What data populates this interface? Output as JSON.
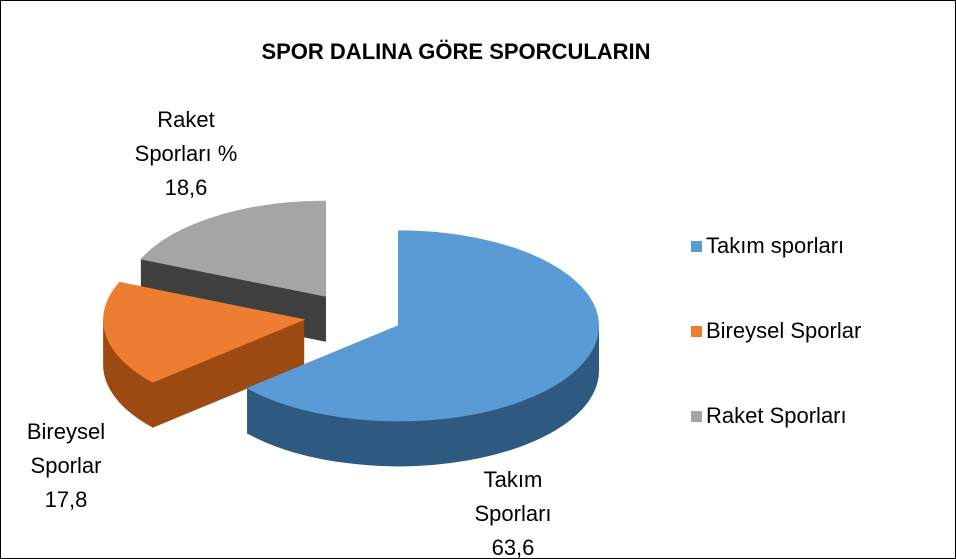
{
  "chart_data": {
    "type": "pie3d",
    "title": "SPOR DALINA GÖRE SPORCULARIN",
    "categories": [
      "Takım sporları",
      "Bireysel Sporlar",
      "Raket Sporları"
    ],
    "data_label_names": [
      "Takım Sporları",
      "Bireysel Sporlar",
      "Raket Sporları %"
    ],
    "values": [
      63.6,
      17.8,
      18.6
    ],
    "value_labels": [
      "63,6",
      "17,8",
      "18,6"
    ],
    "colors": [
      "#5b9bd5",
      "#ed7d31",
      "#a5a5a5"
    ],
    "side_colors": [
      "#2e5a82",
      "#9c4a12",
      "#3f3f3f"
    ],
    "legend": "right"
  }
}
